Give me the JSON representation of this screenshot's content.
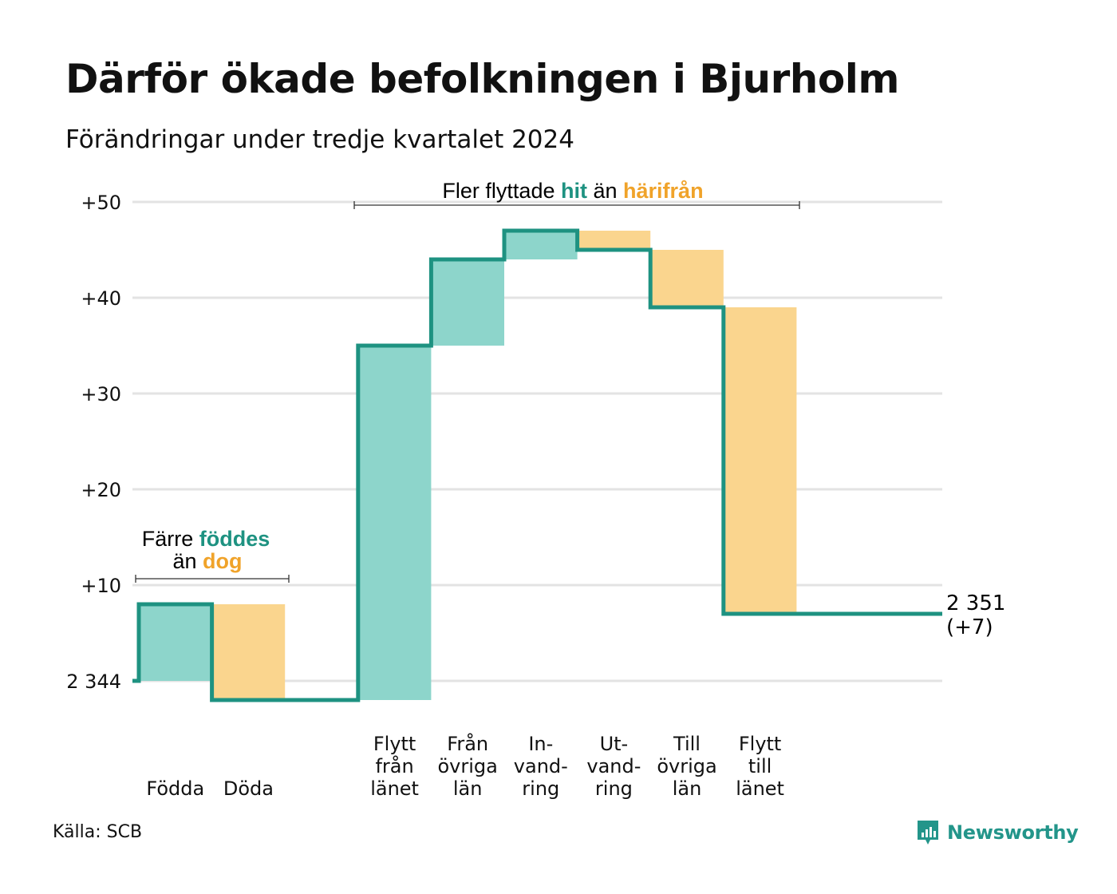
{
  "title": "Därför ökade befolkningen i Bjurholm",
  "subtitle": "Förändringar under tredje kvartalet 2024",
  "source": "Källa: SCB",
  "logo_text": "Newsworthy",
  "colors": {
    "increase": "#8dd5cb",
    "decrease": "#fad58e",
    "line": "#1e9281",
    "accent_teal": "#1e9281",
    "accent_orange": "#f0a32a",
    "grid": "#e3e3e3"
  },
  "annotations": {
    "births": {
      "line1_pre": "Färre ",
      "line1_em": "föddes",
      "line2_pre": "än ",
      "line2_em": "dog"
    },
    "moves": {
      "pre": "Fler flyttade ",
      "em1": "hit",
      "mid": " än ",
      "em2": "härifrån"
    }
  },
  "end_label": {
    "line1": "2 351",
    "line2": "(+7)"
  },
  "chart_data": {
    "type": "waterfall",
    "title": "Därför ökade befolkningen i Bjurholm",
    "subtitle": "Förändringar under tredje kvartalet 2024",
    "baseline": 2344,
    "baseline_label": "2 344",
    "end_value": 2351,
    "ylim": [
      -2.5,
      51
    ],
    "yticks": [
      {
        "value": 0,
        "label": "2 344"
      },
      {
        "value": 10,
        "label": "+10"
      },
      {
        "value": 20,
        "label": "+20"
      },
      {
        "value": 30,
        "label": "+30"
      },
      {
        "value": 40,
        "label": "+40"
      },
      {
        "value": 50,
        "label": "+50"
      }
    ],
    "grid": true,
    "steps": [
      {
        "label": [
          "Födda"
        ],
        "change": 8,
        "start": 0,
        "end": 8,
        "slot": 0
      },
      {
        "label": [
          "Döda"
        ],
        "change": -10,
        "start": 8,
        "end": -2,
        "slot": 1
      },
      {
        "label": [
          "Flytt",
          "från",
          "länet"
        ],
        "change": 37,
        "start": -2,
        "end": 35,
        "slot": 3
      },
      {
        "label": [
          "Från",
          "övriga",
          "län"
        ],
        "change": 9,
        "start": 35,
        "end": 44,
        "slot": 4
      },
      {
        "label": [
          "In-",
          "vand-",
          "ring"
        ],
        "change": 3,
        "start": 44,
        "end": 47,
        "slot": 5
      },
      {
        "label": [
          "Ut-",
          "vand-",
          "ring"
        ],
        "change": -2,
        "start": 47,
        "end": 45,
        "slot": 6
      },
      {
        "label": [
          "Till",
          "övriga",
          "län"
        ],
        "change": -6,
        "start": 45,
        "end": 39,
        "slot": 7
      },
      {
        "label": [
          "Flytt",
          "till",
          "länet"
        ],
        "change": -32,
        "start": 39,
        "end": 7,
        "slot": 8
      }
    ]
  }
}
